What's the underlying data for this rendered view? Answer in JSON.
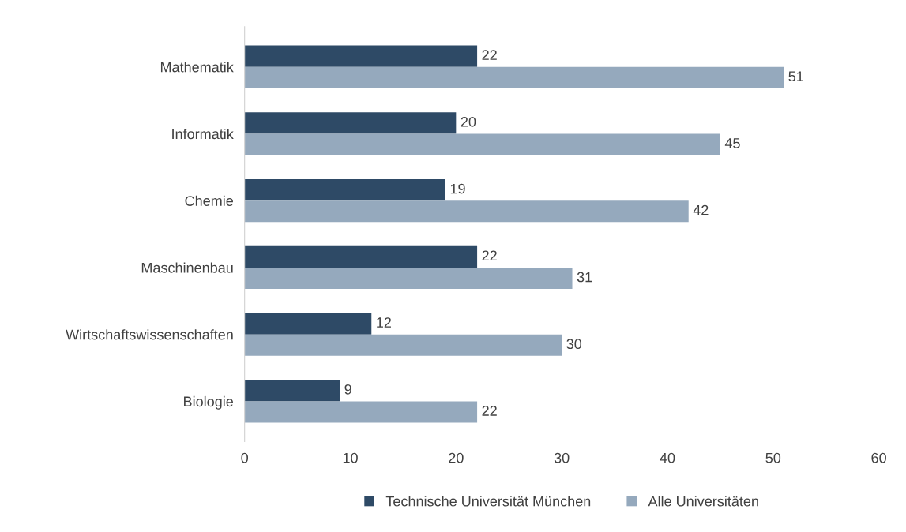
{
  "chart_data": {
    "type": "bar",
    "orientation": "horizontal",
    "categories": [
      "Mathematik",
      "Informatik",
      "Chemie",
      "Maschinenbau",
      "Wirtschaftswissenschaften",
      "Biologie"
    ],
    "series": [
      {
        "name": "Technische Universität München",
        "color": "#2e4a66",
        "values": [
          22,
          20,
          19,
          22,
          12,
          9
        ]
      },
      {
        "name": "Alle Universitäten",
        "color": "#95a9bd",
        "values": [
          51,
          45,
          42,
          31,
          30,
          22
        ]
      }
    ],
    "xlim": [
      0,
      60
    ],
    "xticks": [
      0,
      10,
      20,
      30,
      40,
      50,
      60
    ],
    "data_labels": true,
    "grid": false,
    "legend": "bottom"
  }
}
